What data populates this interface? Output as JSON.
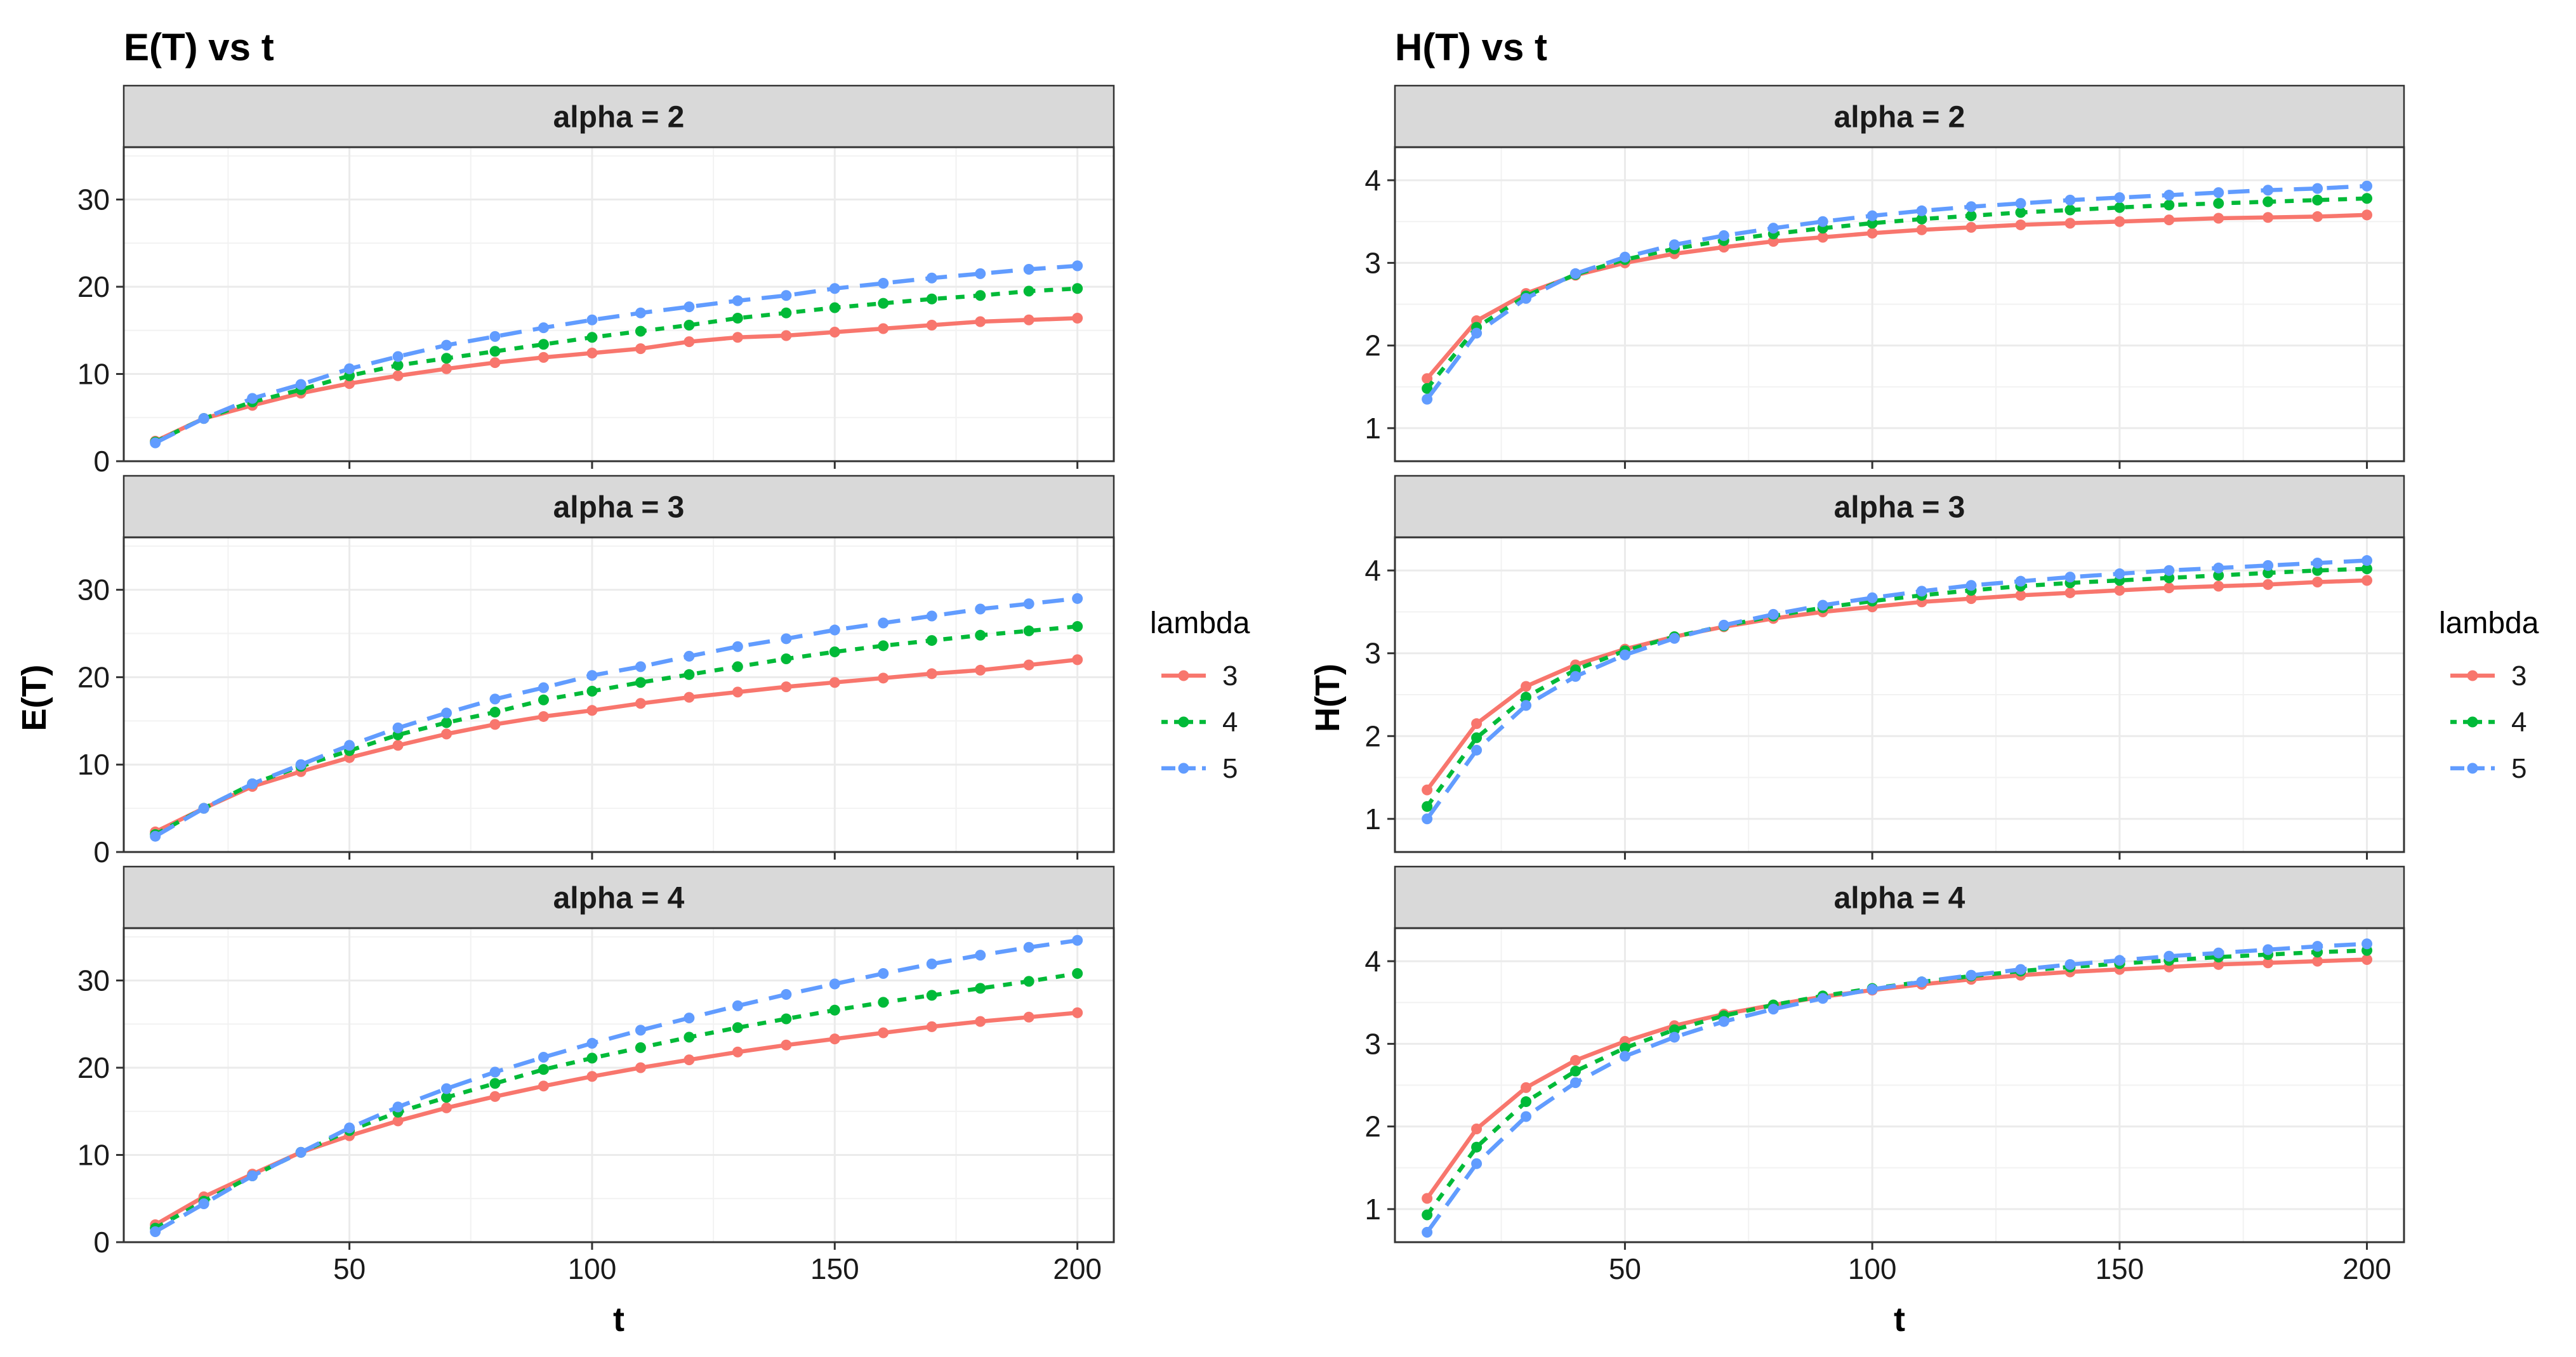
{
  "colors": {
    "lambda_3": "#F8766D",
    "lambda_4": "#00BA38",
    "lambda_5": "#619CFF",
    "strip_bg": "#D9D9D9",
    "grid": "#EBEBEB",
    "text": "#000000"
  },
  "legend": {
    "title": "lambda",
    "labels": [
      "3",
      "4",
      "5"
    ]
  },
  "chart_data": [
    {
      "type": "line",
      "title": "E(T) vs t",
      "xlabel": "t",
      "ylabel": "E(T)",
      "xlim": [
        3.5,
        207.5
      ],
      "ylim": [
        0,
        36
      ],
      "xticks": [
        50,
        100,
        150,
        200
      ],
      "yticks": [
        0,
        10,
        20,
        30
      ],
      "legend_position": "right",
      "x": [
        10,
        20,
        30,
        40,
        50,
        60,
        70,
        80,
        90,
        100,
        110,
        120,
        130,
        140,
        150,
        160,
        170,
        180,
        190,
        200
      ],
      "panels": [
        {
          "strip": "alpha = 2",
          "series": [
            {
              "name": "3",
              "values": [
                2.3,
                4.9,
                6.4,
                7.8,
                8.9,
                9.8,
                10.6,
                11.3,
                11.9,
                12.4,
                12.9,
                13.7,
                14.2,
                14.4,
                14.8,
                15.2,
                15.6,
                16.0,
                16.2,
                16.4
              ]
            },
            {
              "name": "4",
              "values": [
                2.2,
                4.9,
                6.8,
                8.2,
                9.8,
                11.0,
                11.8,
                12.6,
                13.4,
                14.2,
                14.9,
                15.6,
                16.4,
                17.0,
                17.6,
                18.1,
                18.6,
                19.0,
                19.5,
                19.8
              ]
            },
            {
              "name": "5",
              "values": [
                2.1,
                4.9,
                7.2,
                8.8,
                10.6,
                12.0,
                13.3,
                14.3,
                15.3,
                16.2,
                17.0,
                17.7,
                18.4,
                19.0,
                19.8,
                20.4,
                21.0,
                21.5,
                22.0,
                22.4
              ]
            }
          ]
        },
        {
          "strip": "alpha = 3",
          "series": [
            {
              "name": "3",
              "values": [
                2.3,
                5.0,
                7.5,
                9.2,
                10.8,
                12.2,
                13.5,
                14.6,
                15.5,
                16.2,
                17.0,
                17.7,
                18.3,
                18.9,
                19.4,
                19.9,
                20.4,
                20.8,
                21.4,
                22.0
              ]
            },
            {
              "name": "4",
              "values": [
                2.0,
                5.0,
                7.8,
                9.8,
                11.6,
                13.4,
                14.8,
                16.0,
                17.4,
                18.4,
                19.4,
                20.3,
                21.2,
                22.1,
                22.9,
                23.6,
                24.2,
                24.8,
                25.3,
                25.8
              ]
            },
            {
              "name": "5",
              "values": [
                1.8,
                5.0,
                7.8,
                10.0,
                12.2,
                14.2,
                15.9,
                17.5,
                18.8,
                20.2,
                21.2,
                22.4,
                23.5,
                24.4,
                25.4,
                26.2,
                27.0,
                27.8,
                28.4,
                29.0
              ]
            }
          ]
        },
        {
          "strip": "alpha = 4",
          "series": [
            {
              "name": "3",
              "values": [
                2.0,
                5.2,
                7.8,
                10.3,
                12.2,
                13.9,
                15.4,
                16.7,
                17.9,
                19.0,
                20.0,
                20.9,
                21.8,
                22.6,
                23.3,
                24.0,
                24.7,
                25.3,
                25.8,
                26.3
              ]
            },
            {
              "name": "4",
              "values": [
                1.6,
                4.7,
                7.6,
                10.3,
                12.8,
                14.9,
                16.6,
                18.2,
                19.8,
                21.1,
                22.3,
                23.5,
                24.6,
                25.6,
                26.6,
                27.5,
                28.3,
                29.1,
                29.9,
                30.8
              ]
            },
            {
              "name": "5",
              "values": [
                1.2,
                4.4,
                7.6,
                10.3,
                13.1,
                15.5,
                17.6,
                19.5,
                21.2,
                22.8,
                24.3,
                25.7,
                27.1,
                28.4,
                29.6,
                30.8,
                31.9,
                32.9,
                33.8,
                34.6
              ]
            }
          ]
        }
      ]
    },
    {
      "type": "line",
      "title": "H(T) vs t",
      "xlabel": "t",
      "ylabel": "H(T)",
      "xlim": [
        3.5,
        207.5
      ],
      "ylim": [
        0.6,
        4.4
      ],
      "xticks": [
        50,
        100,
        150,
        200
      ],
      "yticks": [
        1,
        2,
        3,
        4
      ],
      "legend_position": "right",
      "x": [
        10,
        20,
        30,
        40,
        50,
        60,
        70,
        80,
        90,
        100,
        110,
        120,
        130,
        140,
        150,
        160,
        170,
        180,
        190,
        200
      ],
      "panels": [
        {
          "strip": "alpha = 2",
          "series": [
            {
              "name": "3",
              "values": [
                1.6,
                2.3,
                2.63,
                2.85,
                3.0,
                3.11,
                3.19,
                3.26,
                3.31,
                3.36,
                3.4,
                3.43,
                3.46,
                3.48,
                3.5,
                3.52,
                3.54,
                3.55,
                3.56,
                3.58
              ]
            },
            {
              "name": "4",
              "values": [
                1.48,
                2.22,
                2.6,
                2.86,
                3.04,
                3.17,
                3.27,
                3.35,
                3.42,
                3.48,
                3.53,
                3.57,
                3.61,
                3.64,
                3.67,
                3.7,
                3.72,
                3.74,
                3.76,
                3.78
              ]
            },
            {
              "name": "5",
              "values": [
                1.35,
                2.15,
                2.57,
                2.87,
                3.07,
                3.22,
                3.33,
                3.42,
                3.5,
                3.57,
                3.63,
                3.68,
                3.72,
                3.76,
                3.79,
                3.82,
                3.85,
                3.88,
                3.9,
                3.93
              ]
            }
          ]
        },
        {
          "strip": "alpha = 3",
          "series": [
            {
              "name": "3",
              "values": [
                1.35,
                2.15,
                2.6,
                2.86,
                3.05,
                3.2,
                3.32,
                3.42,
                3.5,
                3.56,
                3.62,
                3.66,
                3.7,
                3.73,
                3.76,
                3.79,
                3.81,
                3.83,
                3.86,
                3.88
              ]
            },
            {
              "name": "4",
              "values": [
                1.15,
                1.98,
                2.47,
                2.8,
                3.03,
                3.2,
                3.33,
                3.45,
                3.55,
                3.63,
                3.7,
                3.76,
                3.81,
                3.85,
                3.88,
                3.91,
                3.94,
                3.97,
                4.0,
                4.02
              ]
            },
            {
              "name": "5",
              "values": [
                1.0,
                1.83,
                2.37,
                2.72,
                2.98,
                3.18,
                3.34,
                3.47,
                3.58,
                3.67,
                3.75,
                3.82,
                3.87,
                3.92,
                3.96,
                4.0,
                4.03,
                4.06,
                4.09,
                4.12
              ]
            }
          ]
        },
        {
          "strip": "alpha = 4",
          "series": [
            {
              "name": "3",
              "values": [
                1.13,
                1.97,
                2.47,
                2.8,
                3.03,
                3.22,
                3.36,
                3.47,
                3.57,
                3.65,
                3.72,
                3.78,
                3.83,
                3.87,
                3.9,
                3.93,
                3.96,
                3.98,
                4.0,
                4.02
              ]
            },
            {
              "name": "4",
              "values": [
                0.93,
                1.75,
                2.3,
                2.67,
                2.95,
                3.17,
                3.34,
                3.47,
                3.58,
                3.67,
                3.75,
                3.82,
                3.88,
                3.93,
                3.97,
                4.01,
                4.05,
                4.08,
                4.11,
                4.13
              ]
            },
            {
              "name": "5",
              "values": [
                0.72,
                1.55,
                2.12,
                2.53,
                2.85,
                3.08,
                3.27,
                3.42,
                3.55,
                3.66,
                3.75,
                3.83,
                3.9,
                3.96,
                4.01,
                4.06,
                4.1,
                4.14,
                4.18,
                4.21
              ]
            }
          ]
        }
      ]
    }
  ]
}
